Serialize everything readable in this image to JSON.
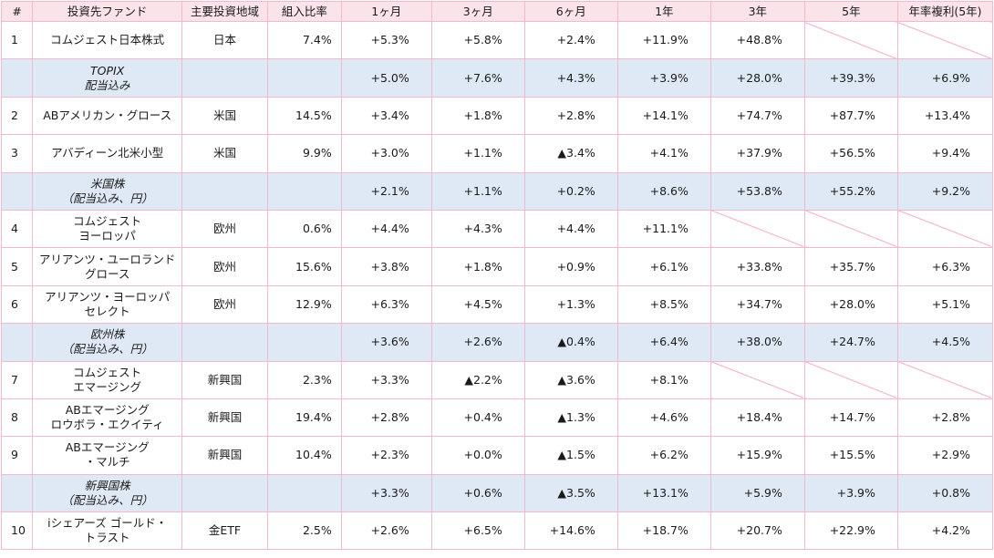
{
  "headers": [
    "#",
    "投資先ファンド",
    "主要投資地域",
    "組入比率",
    "1ヶ月",
    "3ヶ月",
    "6ヶ月",
    "1年",
    "3年",
    "5年",
    "年率複利(5年)"
  ],
  "rows": [
    {
      "type": "fund",
      "idx": "1",
      "fund": [
        "コムジェスト日本株式"
      ],
      "region": "日本",
      "weight": "7.4%",
      "returns": [
        "+5.3%",
        "+5.8%",
        "+2.4%",
        "+11.9%",
        "+48.8%",
        "",
        ""
      ]
    },
    {
      "type": "bench",
      "idx": "",
      "fund": [
        "TOPIX",
        "配当込み"
      ],
      "region": "",
      "weight": "",
      "returns": [
        "+5.0%",
        "+7.6%",
        "+4.3%",
        "+3.9%",
        "+28.0%",
        "+39.3%",
        "+6.9%"
      ]
    },
    {
      "type": "fund",
      "idx": "2",
      "fund": [
        "ABアメリカン・グロース"
      ],
      "region": "米国",
      "weight": "14.5%",
      "returns": [
        "+3.4%",
        "+1.8%",
        "+2.8%",
        "+14.1%",
        "+74.7%",
        "+87.7%",
        "+13.4%"
      ]
    },
    {
      "type": "fund",
      "idx": "3",
      "fund": [
        "アバディーン北米小型"
      ],
      "region": "米国",
      "weight": "9.9%",
      "returns": [
        "+3.0%",
        "+1.1%",
        "▲3.4%",
        "+4.1%",
        "+37.9%",
        "+56.5%",
        "+9.4%"
      ]
    },
    {
      "type": "bench",
      "idx": "",
      "fund": [
        "米国株",
        "（配当込み、円）"
      ],
      "region": "",
      "weight": "",
      "returns": [
        "+2.1%",
        "+1.1%",
        "+0.2%",
        "+8.6%",
        "+53.8%",
        "+55.2%",
        "+9.2%"
      ]
    },
    {
      "type": "fund",
      "idx": "4",
      "fund": [
        "コムジェスト",
        "ヨーロッパ"
      ],
      "region": "欧州",
      "weight": "0.6%",
      "returns": [
        "+4.4%",
        "+4.3%",
        "+4.4%",
        "+11.1%",
        "",
        "",
        ""
      ]
    },
    {
      "type": "fund",
      "idx": "5",
      "fund": [
        "アリアンツ・ユーロランド",
        "グロース"
      ],
      "region": "欧州",
      "weight": "15.6%",
      "returns": [
        "+3.8%",
        "+1.8%",
        "+0.9%",
        "+6.1%",
        "+33.8%",
        "+35.7%",
        "+6.3%"
      ]
    },
    {
      "type": "fund",
      "idx": "6",
      "fund": [
        "アリアンツ・ヨーロッパ",
        "セレクト"
      ],
      "region": "欧州",
      "weight": "12.9%",
      "returns": [
        "+6.3%",
        "+4.5%",
        "+1.3%",
        "+8.5%",
        "+34.7%",
        "+28.0%",
        "+5.1%"
      ]
    },
    {
      "type": "bench",
      "idx": "",
      "fund": [
        "欧州株",
        "（配当込み、円）"
      ],
      "region": "",
      "weight": "",
      "returns": [
        "+3.6%",
        "+2.6%",
        "▲0.4%",
        "+6.4%",
        "+38.0%",
        "+24.7%",
        "+4.5%"
      ]
    },
    {
      "type": "fund",
      "idx": "7",
      "fund": [
        "コムジェスト",
        "エマージング"
      ],
      "region": "新興国",
      "weight": "2.3%",
      "returns": [
        "+3.3%",
        "▲2.2%",
        "▲3.6%",
        "+8.1%",
        "",
        "",
        ""
      ]
    },
    {
      "type": "fund",
      "idx": "8",
      "fund": [
        "ABエマージング",
        "ロウボラ・エクイティ"
      ],
      "region": "新興国",
      "weight": "19.4%",
      "returns": [
        "+2.8%",
        "+0.4%",
        "▲1.3%",
        "+4.6%",
        "+18.4%",
        "+14.7%",
        "+2.8%"
      ]
    },
    {
      "type": "fund",
      "idx": "9",
      "fund": [
        "ABエマージング",
        "・マルチ"
      ],
      "region": "新興国",
      "weight": "10.4%",
      "returns": [
        "+2.3%",
        "+0.0%",
        "▲1.5%",
        "+6.2%",
        "+15.9%",
        "+15.5%",
        "+2.9%"
      ]
    },
    {
      "type": "bench",
      "idx": "",
      "fund": [
        "新興国株",
        "（配当込み、円）"
      ],
      "region": "",
      "weight": "",
      "returns": [
        "+3.3%",
        "+0.6%",
        "▲3.5%",
        "+13.1%",
        "+5.9%",
        "+3.9%",
        "+0.8%"
      ]
    },
    {
      "type": "fund",
      "idx": "10",
      "fund": [
        "iシェアーズ ゴールド・",
        "トラスト"
      ],
      "region": "金ETF",
      "weight": "2.5%",
      "returns": [
        "+2.6%",
        "+6.5%",
        "+14.6%",
        "+18.7%",
        "+20.7%",
        "+22.9%",
        "+4.2%"
      ]
    }
  ]
}
